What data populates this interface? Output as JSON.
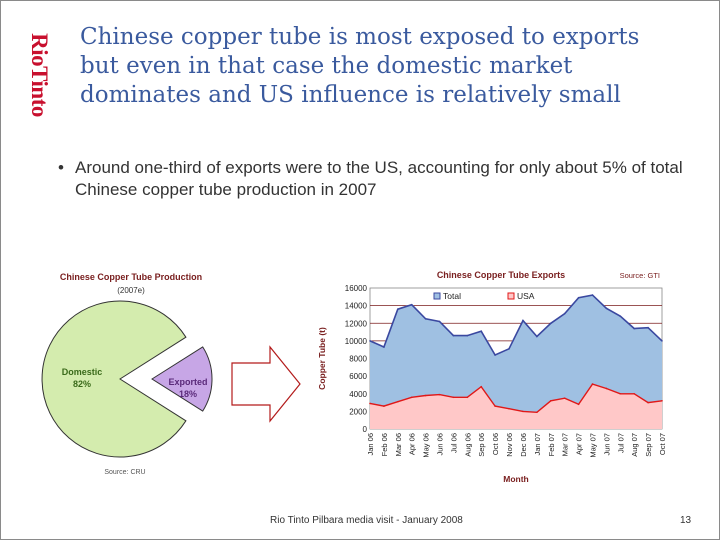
{
  "slide": {
    "logo": "RioTinto",
    "title_lines": [
      "Chinese copper tube is most exposed to exports",
      "but even in that case the domestic market",
      "dominates and US influence is relatively small"
    ],
    "bullet": "Around one-third of exports were to the US, accounting for only about 5% of total Chinese copper tube production in 2007",
    "bullet_marker": "•",
    "footer": "Rio Tinto Pilbara media visit - January 2008",
    "page_number": "13",
    "colors": {
      "title": "#3a5a9e",
      "logo": "#c8102e",
      "pie_domestic": "#d4ecae",
      "pie_exported": "#c7a6e6",
      "total_fill": "#9fc0e2",
      "total_line": "#3a48a0",
      "usa_fill": "#ffc8c8",
      "usa_line": "#e01818",
      "arrow": "#b31b1b"
    }
  },
  "chart_data": [
    {
      "type": "pie",
      "title": "Chinese Copper Tube Production",
      "subtitle": "(2007e)",
      "source": "Source: CRU",
      "labels": [
        "Domestic",
        "Exported"
      ],
      "values": [
        82,
        18
      ],
      "value_labels": [
        "82%",
        "18%"
      ]
    },
    {
      "type": "area",
      "title": "Chinese Copper Tube Exports",
      "source": "Source: GTI",
      "xlabel": "Month",
      "ylabel": "Copper Tube (t)",
      "ylim": [
        0,
        16000
      ],
      "yticks": [
        0,
        2000,
        4000,
        6000,
        8000,
        10000,
        12000,
        14000,
        16000
      ],
      "categories": [
        "Jan 06",
        "Feb 06",
        "Mar 06",
        "Apr 06",
        "May 06",
        "Jun 06",
        "Jul 06",
        "Aug 06",
        "Sep 06",
        "Oct 06",
        "Nov 06",
        "Dec 06",
        "Jan 07",
        "Feb 07",
        "Mar 07",
        "Apr 07",
        "May 07",
        "Jun 07",
        "Jul 07",
        "Aug 07",
        "Sep 07",
        "Oct 07"
      ],
      "series": [
        {
          "name": "Total",
          "values": [
            10000,
            9300,
            13600,
            14100,
            12500,
            12200,
            10600,
            10600,
            11100,
            8400,
            9100,
            12300,
            10500,
            12000,
            13100,
            14900,
            15200,
            13700,
            12800,
            11400,
            11500,
            10000
          ]
        },
        {
          "name": "USA",
          "values": [
            2900,
            2600,
            3100,
            3600,
            3800,
            3900,
            3600,
            3600,
            4800,
            2600,
            2300,
            2000,
            1900,
            3200,
            3500,
            2800,
            5100,
            4600,
            4000,
            4000,
            3000,
            3200
          ]
        }
      ],
      "legend_position": "top-left"
    }
  ]
}
